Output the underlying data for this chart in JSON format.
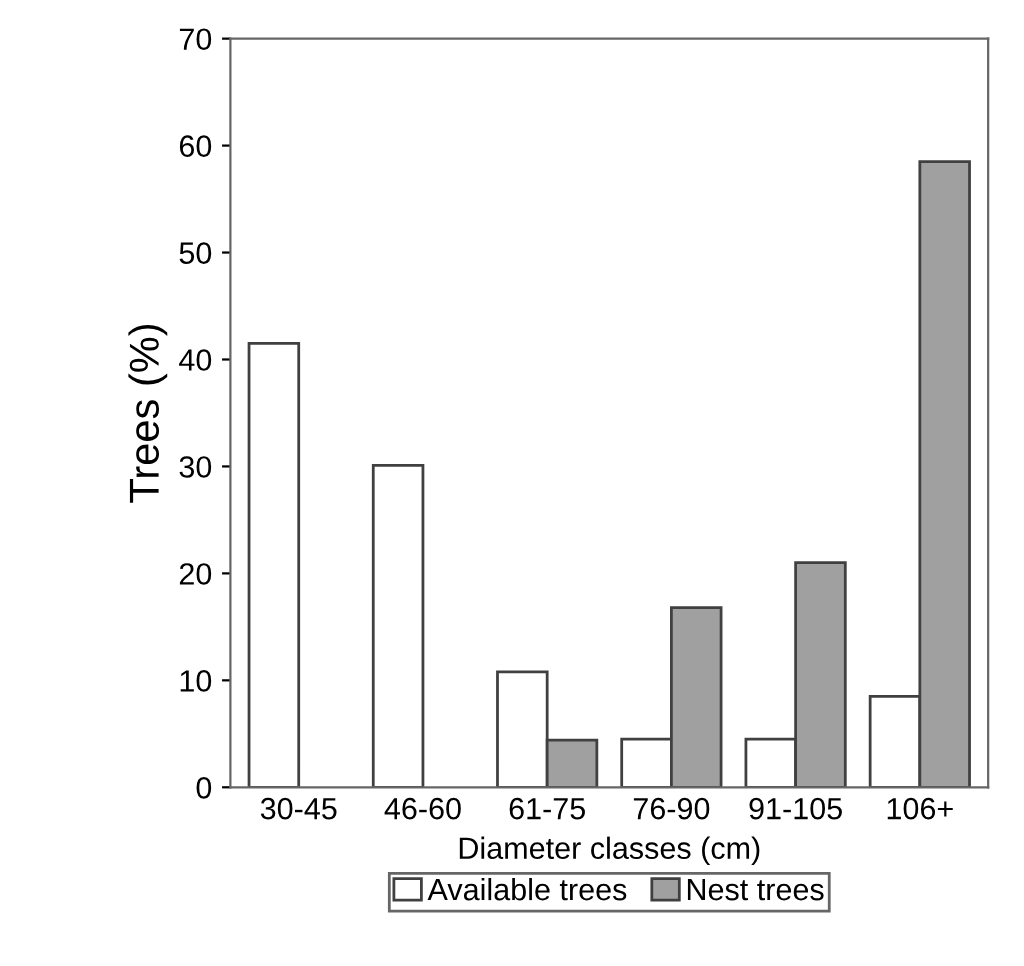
{
  "chart_data": {
    "type": "bar",
    "xlabel": "Diameter classes (cm)",
    "ylabel": "Trees (%)",
    "categories": [
      "30-45",
      "46-60",
      "61-75",
      "76-90",
      "91-105",
      "106+"
    ],
    "series": [
      {
        "name": "Available trees",
        "color": "#ffffff",
        "values": [
          41.5,
          30.1,
          10.8,
          4.5,
          4.5,
          8.5
        ]
      },
      {
        "name": "Nest trees",
        "color": "#a0a0a0",
        "values": [
          null,
          null,
          4.4,
          16.8,
          21.0,
          58.5
        ]
      }
    ],
    "ylim": [
      0,
      70
    ],
    "yticks": [
      0,
      10,
      20,
      30,
      40,
      50,
      60,
      70
    ],
    "grid": false,
    "legend": "bottom"
  }
}
